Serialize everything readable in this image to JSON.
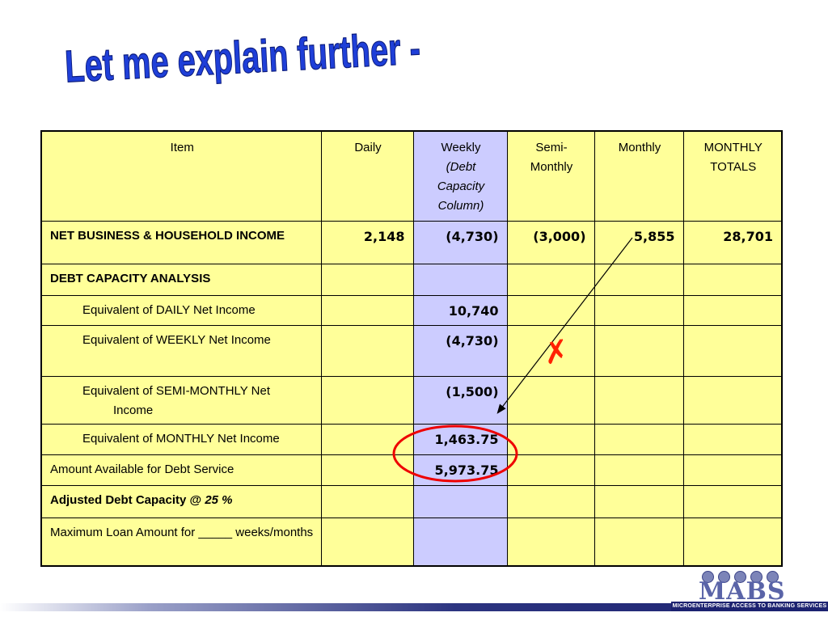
{
  "title": "Let me explain further -",
  "colors": {
    "cell_yellow": "#ffff99",
    "weekly_column": "#ccccff",
    "title_blue": "#1f3fd8",
    "annotation_red": "#ee0000",
    "cross_color": "#ff2200"
  },
  "table": {
    "headers": {
      "item": "Item",
      "daily": "Daily",
      "weekly": "Weekly",
      "weekly_sub": "(Debt Capacity Column)",
      "semi_monthly": "Semi-Monthly",
      "monthly": "Monthly",
      "monthly_totals": "MONTHLY TOTALS"
    },
    "rows": {
      "net_income": {
        "label": "NET BUSINESS & HOUSEHOLD INCOME",
        "daily": "2,148",
        "weekly": "(4,730)",
        "semi_monthly": "(3,000)",
        "monthly": "5,855",
        "totals": "28,701"
      },
      "debt_capacity": {
        "label": "DEBT CAPACITY ANALYSIS"
      },
      "eq_daily": {
        "label": "Equivalent of DAILY Net Income",
        "weekly": "10,740"
      },
      "eq_weekly": {
        "label": "Equivalent of WEEKLY Net Income",
        "weekly": "(4,730)"
      },
      "eq_semi_line1": {
        "label": "Equivalent of SEMI-MONTHLY Net",
        "weekly": "(1,500)"
      },
      "eq_semi_line2": {
        "label": "Income"
      },
      "eq_monthly": {
        "label": "Equivalent of MONTHLY Net Income",
        "weekly": "1,463.75"
      },
      "available": {
        "label": "Amount Available for Debt Service",
        "weekly": "5,973.75"
      },
      "adjusted": {
        "label": "Adjusted Debt Capacity @",
        "pct": "25 %"
      },
      "max_loan": {
        "label": "Maximum Loan Amount for _____ weeks/months"
      }
    }
  },
  "annotations": {
    "cross_mark": "✗"
  },
  "logo": {
    "mark": "MABS",
    "tagline": "MICROENTERPRISE ACCESS TO BANKING SERVICES"
  }
}
